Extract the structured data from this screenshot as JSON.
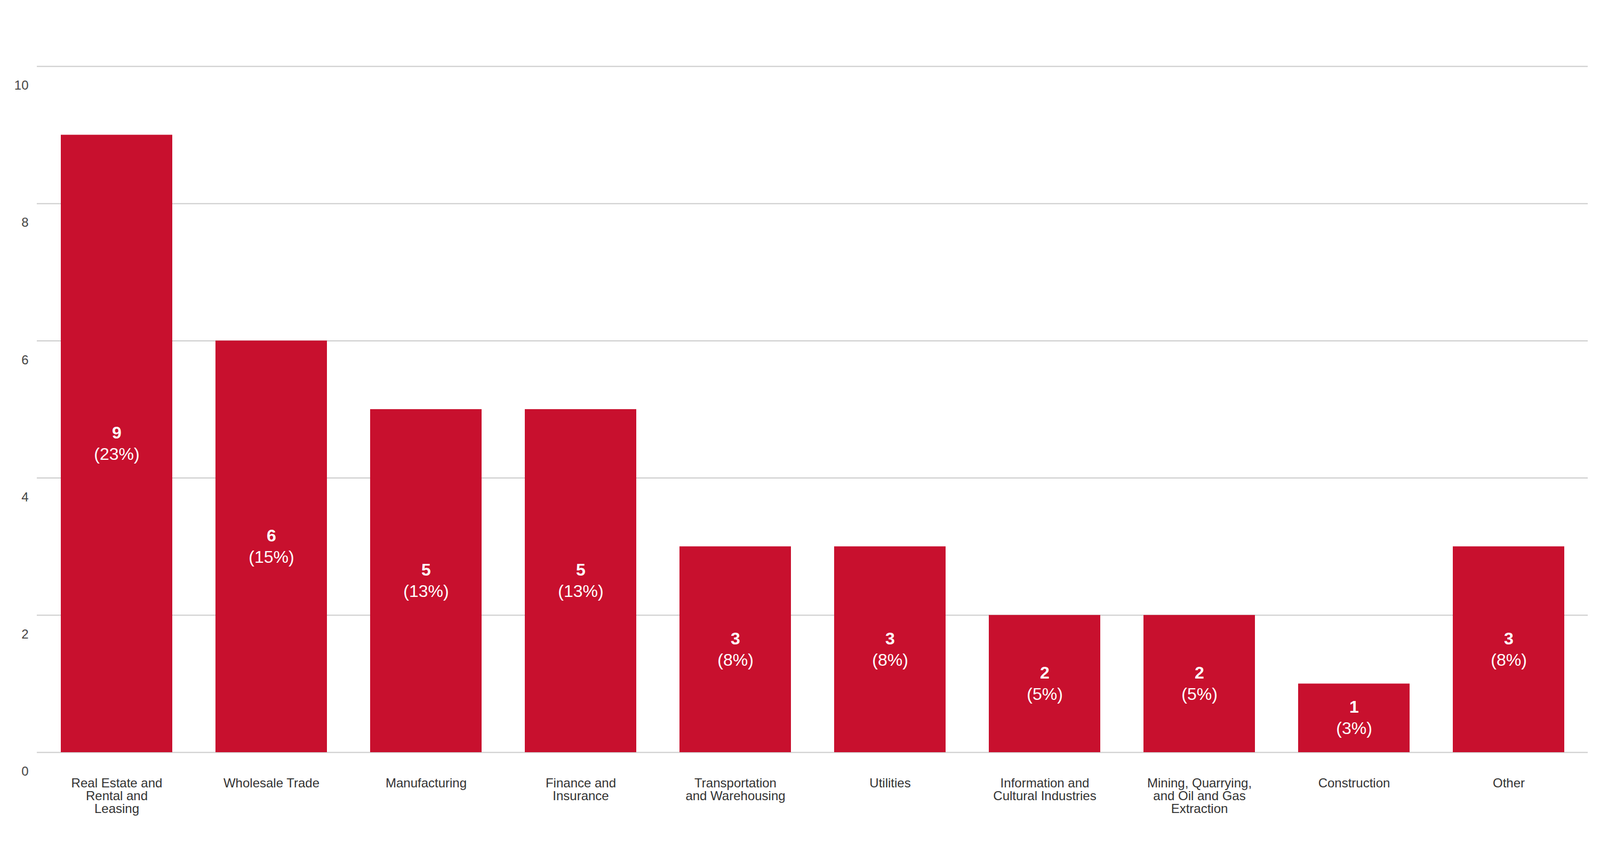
{
  "chart_data": {
    "type": "bar",
    "categories": [
      "Real Estate and Rental and Leasing",
      "Wholesale Trade",
      "Manufacturing",
      "Finance and Insurance",
      "Transportation and Warehousing",
      "Utilities",
      "Information and Cultural Industries",
      "Mining, Quarrying, and Oil and Gas Extraction",
      "Construction",
      "Other"
    ],
    "values": [
      9,
      6,
      5,
      5,
      3,
      3,
      2,
      2,
      1,
      3
    ],
    "percent_labels": [
      "(23%)",
      "(15%)",
      "(13%)",
      "(13%)",
      "(8%)",
      "(8%)",
      "(5%)",
      "(5%)",
      "(3%)",
      "(8%)"
    ],
    "color": "#c8102e",
    "ylim": [
      0,
      10
    ],
    "yticks": [
      0,
      2,
      4,
      6,
      8,
      10
    ],
    "grid": true,
    "data_labels": true
  }
}
